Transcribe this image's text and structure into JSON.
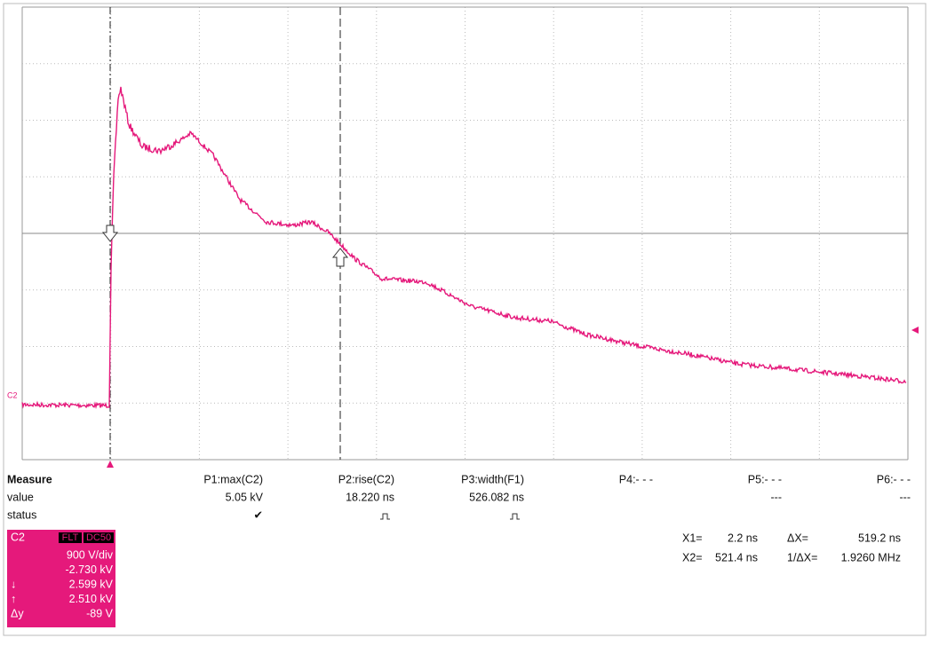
{
  "trace_label": "C2",
  "measure": {
    "title": "Measure",
    "headers": [
      "P1:max(C2)",
      "P2:rise(C2)",
      "P3:width(F1)",
      "P4:- - -",
      "P5:- - -",
      "P6:- - -"
    ],
    "value_label": "value",
    "values": [
      "5.05 kV",
      "18.220 ns",
      "526.082 ns",
      "",
      "---",
      "---"
    ],
    "status_label": "status",
    "status_check": "✔"
  },
  "channel": {
    "name": "C2",
    "badges": [
      "FLT",
      "DC50"
    ],
    "lines": [
      "900 V/div",
      "-2.730 kV",
      "2.599 kV",
      "2.510 kV",
      "-89 V"
    ],
    "line_prefixes": [
      "",
      "",
      "↓",
      "↑",
      "Δy"
    ]
  },
  "cursors": {
    "rows": [
      [
        "X1=",
        "2.2 ns",
        "ΔX=",
        "519.2 ns"
      ],
      [
        "X2=",
        "521.4 ns",
        "1/ΔX=",
        "1.9260 MHz"
      ]
    ]
  }
}
